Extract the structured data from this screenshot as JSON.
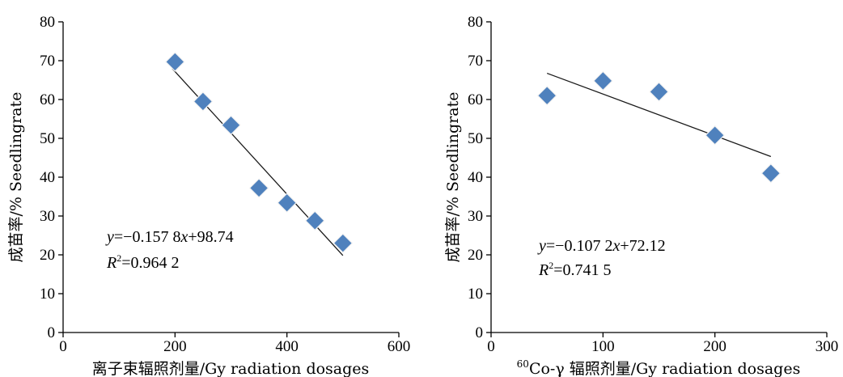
{
  "colors": {
    "marker": "#4f81bd",
    "trendline": "#1a1a1a",
    "axis": "#000000"
  },
  "chart_data": [
    {
      "type": "scatter",
      "title": "",
      "xlabel": "离子束辐照剂量/Gy radiation dosages",
      "ylabel": "成苗率/% Seedlingrate",
      "xlim": [
        0,
        600
      ],
      "ylim": [
        0,
        80
      ],
      "xticks": [
        0,
        200,
        400,
        600
      ],
      "yticks": [
        0,
        10,
        20,
        30,
        40,
        50,
        60,
        70,
        80
      ],
      "grid": false,
      "x": [
        200,
        250,
        300,
        350,
        400,
        450,
        500
      ],
      "y": [
        69.7,
        59.5,
        53.4,
        37.2,
        33.4,
        28.8,
        23.0
      ],
      "trendline": {
        "slope": -0.1578,
        "intercept": 98.74,
        "x_range": [
          195,
          500
        ]
      },
      "annotation": {
        "equation_lhs": "y",
        "equation_rhs_1": "=−0.157 8",
        "equation_var": "x",
        "equation_rhs_2": "+98.74",
        "r2_base": "R",
        "r2_exp": "2",
        "r2_value": "=0.964 2"
      }
    },
    {
      "type": "scatter",
      "title": "",
      "xlabel_sup": "60",
      "xlabel": "Co-γ 辐照剂量/Gy radiation dosages",
      "ylabel": "成苗率/% Seedlingrate",
      "xlim": [
        0,
        300
      ],
      "ylim": [
        0,
        80
      ],
      "xticks": [
        0,
        100,
        200,
        300
      ],
      "yticks": [
        0,
        10,
        20,
        30,
        40,
        50,
        60,
        70,
        80
      ],
      "grid": false,
      "x": [
        50,
        100,
        150,
        200,
        250
      ],
      "y": [
        61.0,
        64.8,
        62.0,
        50.8,
        41.0
      ],
      "trendline": {
        "slope": -0.1072,
        "intercept": 72.12,
        "x_range": [
          50,
          250
        ]
      },
      "annotation": {
        "equation_lhs": "y",
        "equation_rhs_1": "=−0.107 2",
        "equation_var": "x",
        "equation_rhs_2": "+72.12",
        "r2_base": "R",
        "r2_exp": "2",
        "r2_value": "=0.741 5"
      }
    }
  ]
}
